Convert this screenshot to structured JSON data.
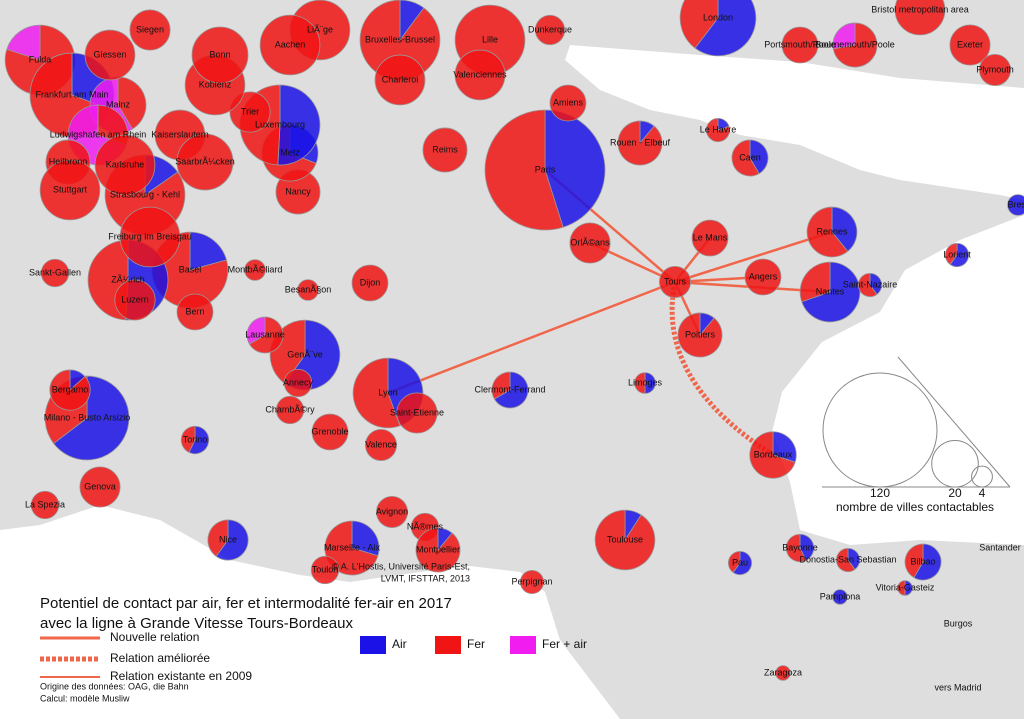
{
  "title": [
    "Potentiel de contact par air, fer et intermodalité fer-air en 2017",
    "avec la ligne à Grande Vitesse Tours-Bordeaux"
  ],
  "legend": {
    "air": "Air",
    "fer": "Fer",
    "fer_air": "Fer + air",
    "colors": {
      "air": "#1a12e6",
      "fer": "#f01414",
      "fer_air": "#f01cf0"
    },
    "relations": [
      "Nouvelle relation",
      "Relation améliorée",
      "Relation existante en 2009"
    ]
  },
  "scale": {
    "caption": "nombre de villes contactables",
    "values": [
      120,
      20,
      4
    ]
  },
  "credits": [
    "© A. L'Hostis, Université Paris-Est,",
    "LVMT, IFSTTAR, 2013",
    "Origine des données: OAG, die Bahn",
    "Calcul: modèle Musliw"
  ],
  "cities": [
    {
      "name": "Paris",
      "air": 60,
      "fer": 73
    },
    {
      "name": "London",
      "air": 32,
      "fer": 21
    },
    {
      "name": "Tours",
      "fer": 9
    },
    {
      "name": "Rennes",
      "air": 9,
      "fer": 14
    },
    {
      "name": "Nantes",
      "air": 23,
      "fer": 10
    },
    {
      "name": "Angers",
      "fer": 12
    },
    {
      "name": "Le Mans",
      "fer": 12
    },
    {
      "name": "OrlÃ©ans",
      "fer": 15
    },
    {
      "name": "Poitiers",
      "air": 2,
      "fer": 16
    },
    {
      "name": "Bordeaux",
      "air": 6,
      "fer": 14
    },
    {
      "name": "Lyon",
      "air": 20,
      "fer": 25
    },
    {
      "name": "Clermont-Ferrand",
      "air": 8,
      "fer": 4
    },
    {
      "name": "Saint-Etienne",
      "fer": 15
    },
    {
      "name": "Valence",
      "fer": 9
    },
    {
      "name": "Grenoble",
      "fer": 12
    },
    {
      "name": "GenÃ¨ve",
      "air": 27,
      "fer": 18
    },
    {
      "name": "Annecy",
      "fer": 7
    },
    {
      "name": "ChambÃ©ry",
      "fer": 7
    },
    {
      "name": "Lausanne",
      "fer_air": 4,
      "fer": 8
    },
    {
      "name": "Milano - Busto Arsizio",
      "air": 42,
      "fer": 23
    },
    {
      "name": "Bergamo",
      "air": 2,
      "fer": 13
    },
    {
      "name": "Torino",
      "air": 4,
      "fer": 3
    },
    {
      "name": "Genova",
      "fer": 15
    },
    {
      "name": "La Spezia",
      "fer": 7
    },
    {
      "name": "Nice",
      "air": 9,
      "fer": 6
    },
    {
      "name": "Marseille - Aix",
      "air": 8,
      "fer": 19
    },
    {
      "name": "Toulon",
      "fer": 7
    },
    {
      "name": "Avignon",
      "fer": 9
    },
    {
      "name": "NÃ®mes",
      "fer": 7
    },
    {
      "name": "Montpellier",
      "air": 2,
      "fer": 16
    },
    {
      "name": "Toulouse",
      "air": 3,
      "fer": 30
    },
    {
      "name": "Perpignan",
      "fer": 5
    },
    {
      "name": "Pau",
      "air": 3,
      "fer": 2
    },
    {
      "name": "Bayonne",
      "air": 3,
      "fer": 4
    },
    {
      "name": "Donostia-San Sebastian",
      "air": 2,
      "fer": 3
    },
    {
      "name": "Bilbao",
      "air": 7,
      "fer": 5
    },
    {
      "name": "Vitoria-Gasteiz",
      "air": 1,
      "fer": 1
    },
    {
      "name": "Pamplona",
      "air": 2
    },
    {
      "name": "Zaragoza",
      "fer": 2
    },
    {
      "name": "Limoges",
      "air": 2,
      "fer": 2
    },
    {
      "name": "Caen",
      "air": 5,
      "fer": 7
    },
    {
      "name": "Le Havre",
      "air": 1,
      "fer": 4
    },
    {
      "name": "Rouen - Elbeuf",
      "air": 2,
      "fer": 16
    },
    {
      "name": "Amiens",
      "fer": 12
    },
    {
      "name": "Reims",
      "fer": 18
    },
    {
      "name": "Lorient",
      "air": 3,
      "fer": 2
    },
    {
      "name": "Saint-Nazaire",
      "air": 2,
      "fer": 3
    },
    {
      "name": "Brest",
      "air": 4
    },
    {
      "name": "Dijon",
      "fer": 12
    },
    {
      "name": "BesanÃ§on",
      "fer": 4
    },
    {
      "name": "MontbÃ©liard",
      "fer": 4
    },
    {
      "name": "Nancy",
      "fer": 18
    },
    {
      "name": "Metz",
      "air": 9,
      "fer": 20
    },
    {
      "name": "Luxembourg",
      "air": 30,
      "fer": 29
    },
    {
      "name": "Strasbourg - Kehl",
      "air": 9,
      "fer": 50
    },
    {
      "name": "Basel",
      "air": 11,
      "fer": 42
    },
    {
      "name": "ZÃ¼rich",
      "air": 30,
      "fer": 29
    },
    {
      "name": "Luzern",
      "fer": 15
    },
    {
      "name": "Bern",
      "fer": 12
    },
    {
      "name": "Sankt-Gallen",
      "fer": 7
    },
    {
      "name": "Freiburg im Breisgau",
      "fer": 33
    },
    {
      "name": "Fulda",
      "fer": 36,
      "fer_air": 9
    },
    {
      "name": "Frankfurt am Main",
      "air": 20,
      "fer": 45
    },
    {
      "name": "Mainz",
      "fer_air": 17,
      "fer": 12
    },
    {
      "name": "Ludwigshafen am Rhein",
      "fer_air": 23,
      "fer": 10
    },
    {
      "name": "Heilbronn",
      "fer": 18
    },
    {
      "name": "Stuttgart",
      "fer": 33
    },
    {
      "name": "Karlsruhe",
      "fer": 33
    },
    {
      "name": "Kaiserslautern",
      "fer": 23
    },
    {
      "name": "SaarbrÃ¼cken",
      "fer": 29
    },
    {
      "name": "Trier",
      "fer": 15
    },
    {
      "name": "Koblenz",
      "fer": 33
    },
    {
      "name": "Bonn",
      "fer": 29
    },
    {
      "name": "Bruxelles-Brussel",
      "air": 6,
      "fer": 53
    },
    {
      "name": "Lille",
      "fer": 45
    },
    {
      "name": "Dunkerque",
      "fer": 8
    },
    {
      "name": "Valenciennes",
      "fer": 23
    },
    {
      "name": "Charleroi",
      "fer": 23
    },
    {
      "name": "LiÃ¨ge",
      "fer": 33
    },
    {
      "name": "Aachen",
      "fer": 33
    },
    {
      "name": "Siegen",
      "fer": 15
    },
    {
      "name": "Giessen",
      "fer": 23
    },
    {
      "name": "Portsmouth/Poole",
      "fer": 12
    },
    {
      "name": "Bournemouth/Poole",
      "fer": 13,
      "fer_air": 5
    },
    {
      "name": "Exeter",
      "fer": 15
    },
    {
      "name": "Plymouth",
      "fer": 9
    },
    {
      "name": "Bristol metropolitan area",
      "fer": 23
    }
  ],
  "places": [
    "Santander",
    "Burgos",
    "vers Madrid"
  ]
}
